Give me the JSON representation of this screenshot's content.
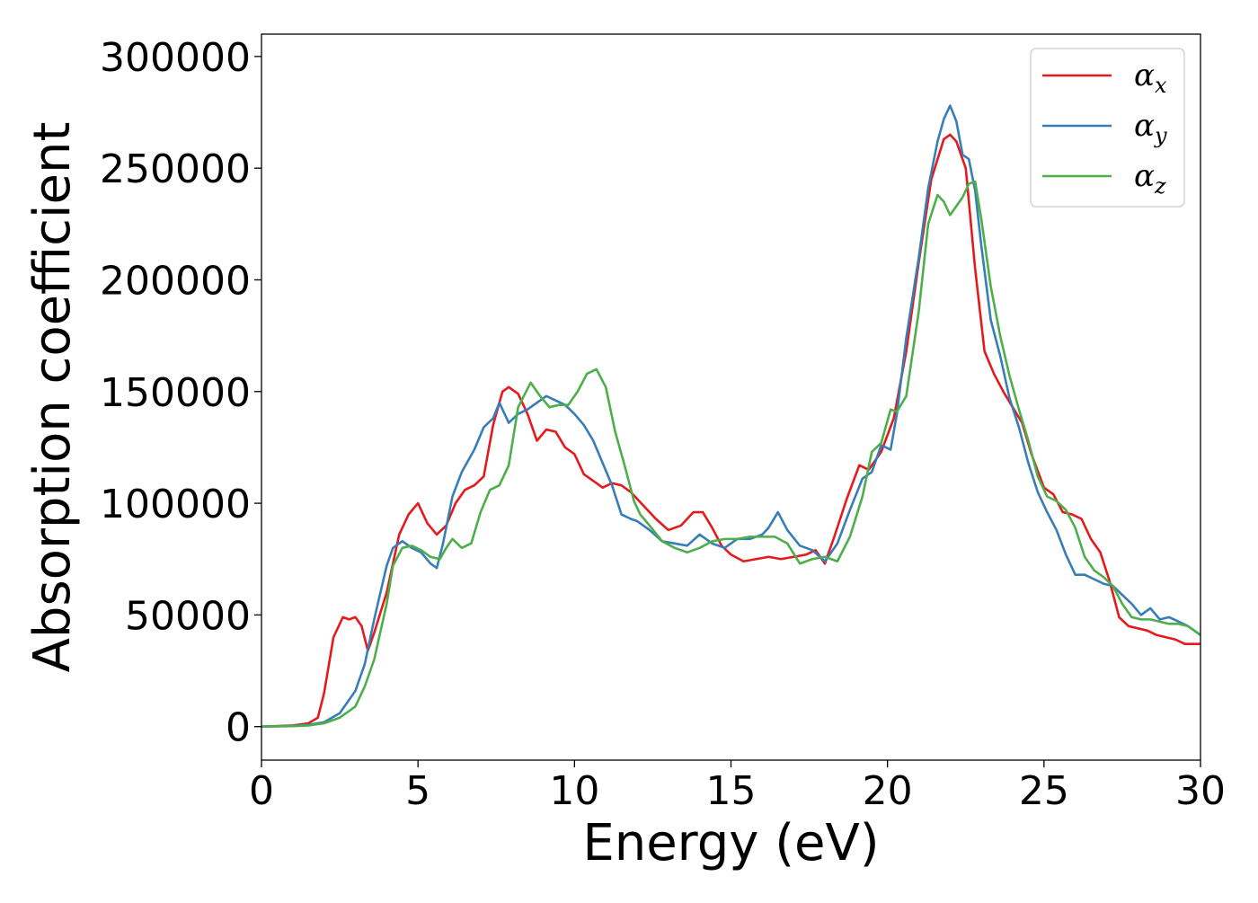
{
  "chart_data": {
    "type": "line",
    "title": "",
    "xlabel": "Energy (eV)",
    "ylabel": "Absorption coefficient",
    "xlim": [
      0,
      30
    ],
    "ylim": [
      -15000,
      310000
    ],
    "xticks": [
      0,
      5,
      10,
      15,
      20,
      25,
      30
    ],
    "xtick_labels": [
      "0",
      "5",
      "10",
      "15",
      "20",
      "25",
      "30"
    ],
    "yticks": [
      0,
      50000,
      100000,
      150000,
      200000,
      250000,
      300000
    ],
    "ytick_labels": [
      "0",
      "50000",
      "100000",
      "150000",
      "200000",
      "250000",
      "300000"
    ],
    "grid": false,
    "legend_position": "top-right",
    "series": [
      {
        "name": "αx",
        "symbol": "α",
        "subscript": "x",
        "color": "#e41a1c",
        "x": [
          0,
          1,
          1.5,
          1.8,
          2.0,
          2.3,
          2.6,
          2.8,
          3.0,
          3.2,
          3.4,
          3.6,
          4.0,
          4.4,
          4.7,
          5.0,
          5.3,
          5.6,
          5.9,
          6.2,
          6.5,
          6.8,
          7.1,
          7.4,
          7.7,
          7.9,
          8.2,
          8.5,
          8.8,
          9.1,
          9.4,
          9.7,
          10.0,
          10.3,
          10.6,
          10.9,
          11.2,
          11.5,
          11.8,
          12.2,
          12.6,
          13.0,
          13.4,
          13.8,
          14.1,
          14.4,
          14.7,
          15.0,
          15.4,
          15.8,
          16.2,
          16.6,
          17.0,
          17.4,
          17.7,
          18.0,
          18.3,
          18.7,
          19.1,
          19.4,
          19.8,
          20.2,
          20.6,
          21.0,
          21.4,
          21.8,
          22.0,
          22.2,
          22.5,
          22.8,
          23.1,
          23.4,
          23.7,
          24.0,
          24.3,
          24.6,
          25.0,
          25.3,
          25.6,
          25.9,
          26.2,
          26.5,
          26.8,
          27.1,
          27.4,
          27.7,
          28.0,
          28.3,
          28.6,
          28.9,
          29.2,
          29.5,
          29.8,
          30.0
        ],
        "y": [
          0,
          500,
          1500,
          4000,
          15000,
          40000,
          49000,
          48000,
          49000,
          45000,
          34000,
          42000,
          60000,
          86000,
          95000,
          100000,
          91000,
          86000,
          90000,
          100000,
          106000,
          108000,
          112000,
          135000,
          150000,
          152000,
          149000,
          140000,
          128000,
          133000,
          132000,
          125000,
          122000,
          113000,
          110000,
          107000,
          109000,
          108000,
          105000,
          99000,
          93000,
          88000,
          90000,
          96000,
          96000,
          89000,
          81000,
          77000,
          74000,
          75000,
          76000,
          75000,
          76000,
          77000,
          79000,
          73000,
          85000,
          102000,
          117000,
          115000,
          123000,
          138000,
          168000,
          208000,
          245000,
          263000,
          265000,
          262000,
          250000,
          205000,
          168000,
          158000,
          150000,
          143000,
          136000,
          122000,
          107000,
          104000,
          96000,
          95000,
          93000,
          84000,
          78000,
          65000,
          49000,
          45000,
          44000,
          43000,
          41000,
          40000,
          39000,
          37000,
          37000,
          37000
        ]
      },
      {
        "name": "αy",
        "symbol": "α",
        "subscript": "y",
        "color": "#377eb8",
        "x": [
          0,
          1,
          1.5,
          2.0,
          2.5,
          3.0,
          3.3,
          3.6,
          4.0,
          4.2,
          4.5,
          4.8,
          5.1,
          5.4,
          5.6,
          5.8,
          6.1,
          6.4,
          6.8,
          7.1,
          7.4,
          7.6,
          7.9,
          8.2,
          8.5,
          8.8,
          9.1,
          9.4,
          9.7,
          10.0,
          10.3,
          10.6,
          10.9,
          11.2,
          11.5,
          11.8,
          12.0,
          12.4,
          12.8,
          13.2,
          13.6,
          14.0,
          14.4,
          14.8,
          15.2,
          15.6,
          16.0,
          16.2,
          16.5,
          16.8,
          17.2,
          17.6,
          18.0,
          18.4,
          18.8,
          19.2,
          19.5,
          19.8,
          20.1,
          20.3,
          20.6,
          21.0,
          21.3,
          21.6,
          21.8,
          22.0,
          22.2,
          22.4,
          22.6,
          22.8,
          23.0,
          23.3,
          23.6,
          23.9,
          24.2,
          24.5,
          24.8,
          25.1,
          25.4,
          25.7,
          26.0,
          26.3,
          26.6,
          26.9,
          27.2,
          27.5,
          27.8,
          28.1,
          28.4,
          28.7,
          29.0,
          29.3,
          29.6,
          30.0
        ],
        "y": [
          0,
          300,
          800,
          2000,
          6000,
          16000,
          28000,
          48000,
          72000,
          80000,
          83000,
          80000,
          78000,
          73000,
          71000,
          82000,
          103000,
          114000,
          124000,
          134000,
          138000,
          145000,
          136000,
          140000,
          142000,
          145000,
          148000,
          146000,
          144000,
          140000,
          135000,
          128000,
          118000,
          108000,
          95000,
          93000,
          92000,
          88000,
          83000,
          82000,
          81000,
          86000,
          82000,
          80000,
          84000,
          84000,
          86000,
          89000,
          96000,
          88000,
          81000,
          79000,
          74000,
          82000,
          97000,
          111000,
          114000,
          126000,
          124000,
          140000,
          174000,
          210000,
          241000,
          262000,
          272000,
          278000,
          271000,
          256000,
          254000,
          240000,
          215000,
          182000,
          166000,
          147000,
          134000,
          118000,
          105000,
          96000,
          88000,
          77000,
          68000,
          68000,
          66000,
          64000,
          63000,
          59000,
          55000,
          50000,
          53000,
          48000,
          49000,
          47000,
          45000,
          41000
        ]
      },
      {
        "name": "αz",
        "symbol": "α",
        "subscript": "z",
        "color": "#4daf4a",
        "x": [
          0,
          1,
          1.5,
          2.0,
          2.5,
          3.0,
          3.3,
          3.6,
          4.0,
          4.2,
          4.5,
          4.8,
          5.1,
          5.4,
          5.7,
          5.9,
          6.1,
          6.4,
          6.7,
          7.0,
          7.3,
          7.6,
          7.9,
          8.2,
          8.6,
          8.9,
          9.2,
          9.5,
          9.8,
          10.1,
          10.4,
          10.7,
          11.0,
          11.3,
          11.6,
          11.9,
          12.1,
          12.4,
          12.8,
          13.2,
          13.6,
          14.0,
          14.4,
          14.8,
          15.2,
          15.6,
          16.0,
          16.4,
          16.8,
          17.2,
          17.6,
          18.0,
          18.4,
          18.8,
          19.2,
          19.5,
          19.8,
          20.1,
          20.3,
          20.6,
          21.0,
          21.3,
          21.6,
          21.8,
          22.0,
          22.2,
          22.4,
          22.6,
          22.8,
          23.0,
          23.3,
          23.6,
          23.9,
          24.2,
          24.5,
          24.8,
          25.1,
          25.4,
          25.7,
          26.0,
          26.3,
          26.6,
          26.9,
          27.2,
          27.5,
          27.8,
          28.1,
          28.4,
          28.7,
          29.0,
          29.3,
          29.6,
          30.0
        ],
        "y": [
          0,
          200,
          500,
          1500,
          4000,
          9000,
          18000,
          30000,
          55000,
          72000,
          80000,
          81000,
          79000,
          76000,
          75000,
          80000,
          84000,
          80000,
          82000,
          96000,
          106000,
          108000,
          117000,
          143000,
          154000,
          148000,
          143000,
          144000,
          144000,
          150000,
          158000,
          160000,
          152000,
          132000,
          117000,
          101000,
          95000,
          90000,
          83000,
          80000,
          78000,
          80000,
          83000,
          84000,
          84000,
          85000,
          85000,
          85000,
          82000,
          73000,
          75000,
          76000,
          74000,
          85000,
          103000,
          123000,
          127000,
          142000,
          141000,
          148000,
          186000,
          225000,
          238000,
          235000,
          229000,
          233000,
          237000,
          243000,
          244000,
          227000,
          197000,
          175000,
          157000,
          142000,
          128000,
          112000,
          103000,
          101000,
          97000,
          89000,
          76000,
          70000,
          67000,
          63000,
          55000,
          49000,
          48000,
          48000,
          47000,
          46000,
          46000,
          45000,
          41000
        ]
      }
    ]
  }
}
